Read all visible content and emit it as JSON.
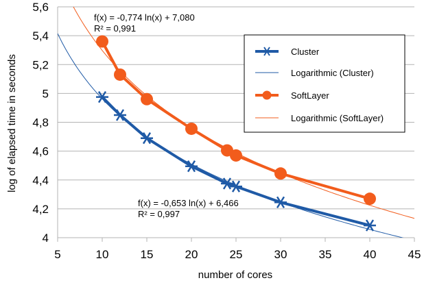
{
  "chart_data": {
    "type": "line",
    "xlabel": "number of cores",
    "ylabel": "log of elapsed time in seconds",
    "xlim": [
      5,
      45
    ],
    "ylim": [
      4,
      5.6
    ],
    "x_ticks": [
      5,
      10,
      15,
      20,
      25,
      30,
      35,
      40,
      45
    ],
    "y_ticks": [
      4,
      4.2,
      4.4,
      4.6,
      4.8,
      5,
      5.2,
      5.4,
      5.6
    ],
    "x_tick_labels": [
      "5",
      "10",
      "15",
      "20",
      "25",
      "30",
      "35",
      "40",
      "45"
    ],
    "y_tick_labels": [
      "4",
      "4,2",
      "4,4",
      "4,6",
      "4,8",
      "5",
      "5,2",
      "5,4",
      "5,6"
    ],
    "grid": "horizontal",
    "legend_position": "right",
    "series": [
      {
        "name": "Cluster",
        "color": "#1f5aa6",
        "marker": "asterisk",
        "x": [
          10,
          12,
          15,
          20,
          24,
          25,
          30,
          40
        ],
        "y": [
          4.975,
          4.85,
          4.69,
          4.495,
          4.375,
          4.355,
          4.245,
          4.085
        ]
      },
      {
        "name": "SoftLayer",
        "color": "#f25c1c",
        "marker": "circle",
        "x": [
          10,
          12,
          15,
          20,
          24,
          25,
          30,
          40
        ],
        "y": [
          5.36,
          5.13,
          4.96,
          4.755,
          4.605,
          4.57,
          4.445,
          4.27
        ]
      }
    ],
    "trendlines": [
      {
        "name": "Logarithmic (Cluster)",
        "color": "#1f5aa6",
        "a": -0.653,
        "b": 6.466,
        "equation": "f(x) = -0,653 ln(x) + 6,466",
        "r2": "R² = 0,997"
      },
      {
        "name": "Logarithmic (SoftLayer)",
        "color": "#f25c1c",
        "a": -0.774,
        "b": 7.08,
        "equation": "f(x) = -0,774 ln(x) + 7,080",
        "r2": "R² = 0,991"
      }
    ]
  }
}
